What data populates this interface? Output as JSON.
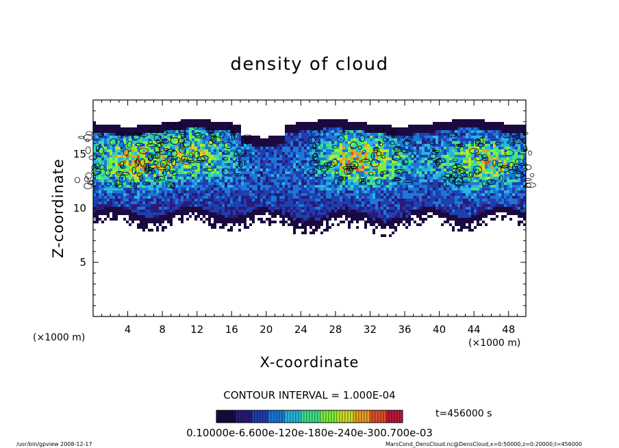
{
  "chart_data": {
    "type": "heatmap",
    "title": "density of cloud",
    "xlabel": "X-coordinate",
    "ylabel": "Z-coordinate",
    "x_unit": "(×1000 m)",
    "y_unit": "(×1000 m)",
    "xlim": [
      0,
      50
    ],
    "ylim": [
      0,
      20
    ],
    "x_ticks": [
      "4",
      "8",
      "12",
      "16",
      "20",
      "24",
      "28",
      "32",
      "36",
      "40",
      "44",
      "48"
    ],
    "y_ticks": [
      "5",
      "10",
      "15"
    ],
    "grid": false,
    "contour_interval_label": "CONTOUR INTERVAL = 1.000E-04",
    "time_label": "t=456000 s",
    "colorbar_label": "0.10000e-6.600e-120e-180e-240e-300.700e-03",
    "colorbar_range": [
      0.0,
      0.0007
    ],
    "colorbar_colors": [
      "#1a0a40",
      "#2a1a7a",
      "#1f3fb0",
      "#1c78d8",
      "#28b6e0",
      "#3fe08a",
      "#7cf03c",
      "#c8e028",
      "#e8a020",
      "#e05028",
      "#c01838"
    ],
    "cloud_layers": [
      {
        "x_range": [
          0,
          50
        ],
        "z_bottom": 9.2,
        "z_top": 17.8,
        "note": "band"
      },
      {
        "x_center": 4,
        "z_center": 14.5,
        "peak": 0.00035
      },
      {
        "x_center": 12,
        "z_center": 15.5,
        "peak": 0.0003
      },
      {
        "x_center": 31,
        "z_center": 14.8,
        "peak": 0.0004
      },
      {
        "x_center": 45,
        "z_center": 14.5,
        "peak": 0.00035
      }
    ]
  },
  "footer": {
    "left": "/usr/bin/gpview   2008-12-17",
    "right": "MarsCond_DensCloud.nc@DensCloud,x=0:50000,z=0:20000,t=456000"
  }
}
